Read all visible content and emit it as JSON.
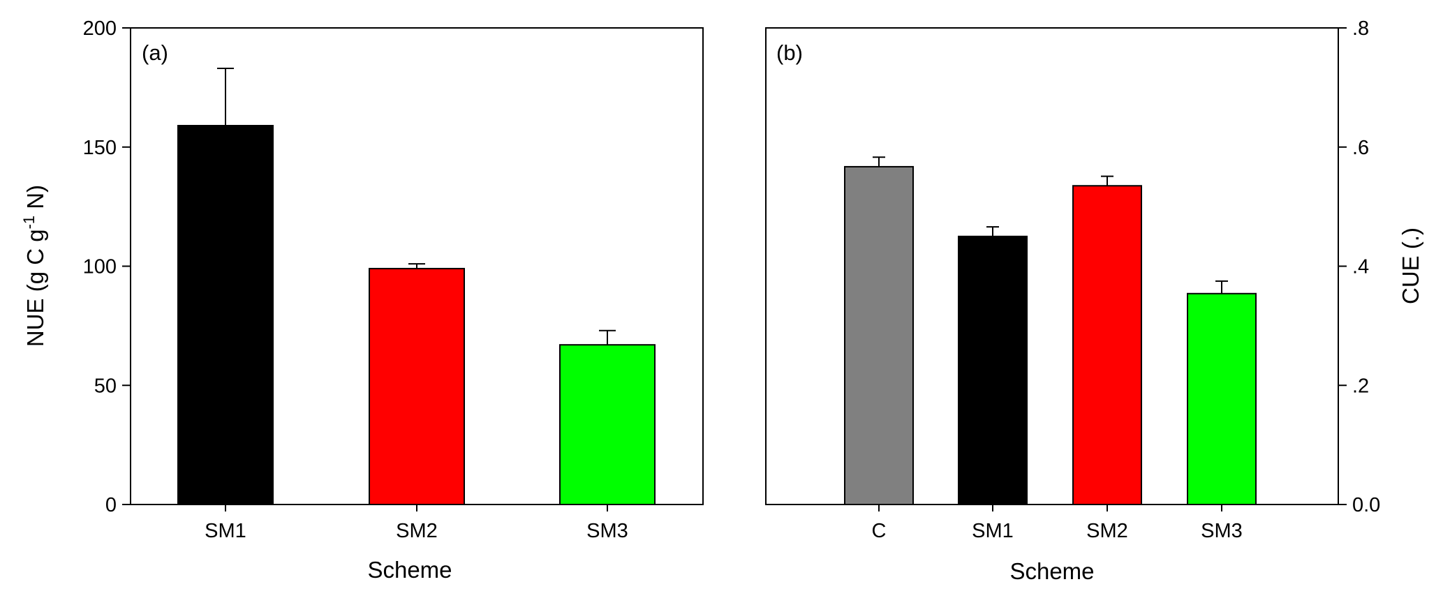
{
  "chart_data": [
    {
      "type": "bar",
      "panel_label": "(a)",
      "categories": [
        "SM1",
        "SM2",
        "SM3"
      ],
      "values": [
        159,
        99,
        67
      ],
      "error_upper": [
        183,
        101,
        73
      ],
      "colors": [
        "#000000",
        "#ff0000",
        "#00ff00"
      ],
      "xlabel": "Scheme",
      "ylabel": {
        "prefix": "NUE (g C g",
        "sup": "-1",
        "suffix": " N)"
      },
      "ylim": [
        0,
        200
      ],
      "yticks": [
        0,
        50,
        100,
        150,
        200
      ],
      "ytick_labels": [
        "0",
        "50",
        "100",
        "150",
        "200"
      ],
      "y_axis_side": "left",
      "grid": false
    },
    {
      "type": "bar",
      "panel_label": "(b)",
      "categories": [
        "C",
        "SM1",
        "SM2",
        "SM3"
      ],
      "values": [
        0.567,
        0.45,
        0.535,
        0.354
      ],
      "error_upper": [
        0.583,
        0.466,
        0.551,
        0.375
      ],
      "colors": [
        "#808080",
        "#000000",
        "#ff0000",
        "#00ff00"
      ],
      "xlabel": "Scheme",
      "ylabel": {
        "prefix": "CUE (.)",
        "sup": "",
        "suffix": ""
      },
      "ylim": [
        0,
        0.8
      ],
      "yticks": [
        0,
        0.2,
        0.4,
        0.6,
        0.8
      ],
      "ytick_labels": [
        "0.0",
        ".2",
        ".4",
        ".6",
        ".8"
      ],
      "y_axis_side": "right",
      "grid": false
    }
  ]
}
